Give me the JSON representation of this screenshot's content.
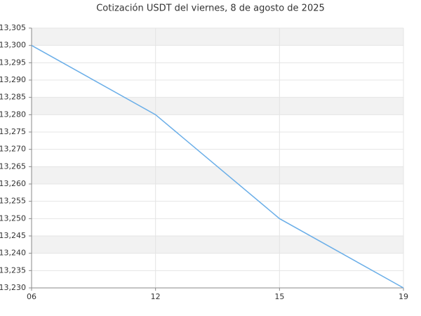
{
  "chart_data": {
    "type": "line",
    "title": "Cotización USDT del viernes, 8 de agosto de 2025",
    "categories": [
      "06",
      "12",
      "15",
      "19"
    ],
    "series": [
      {
        "name": "USDT",
        "color": "#6aaee8",
        "values": [
          13.3,
          13.28,
          13.25,
          13.23
        ]
      }
    ],
    "ylim": [
      13.23,
      13.305
    ],
    "yticks": [
      {
        "value": 13.23,
        "label": "13,230"
      },
      {
        "value": 13.235,
        "label": "13,235"
      },
      {
        "value": 13.24,
        "label": "13,240"
      },
      {
        "value": 13.245,
        "label": "13,245"
      },
      {
        "value": 13.25,
        "label": "13,250"
      },
      {
        "value": 13.255,
        "label": "13,255"
      },
      {
        "value": 13.26,
        "label": "13,260"
      },
      {
        "value": 13.265,
        "label": "13,265"
      },
      {
        "value": 13.27,
        "label": "13,270"
      },
      {
        "value": 13.275,
        "label": "13,275"
      },
      {
        "value": 13.28,
        "label": "13,280"
      },
      {
        "value": 13.285,
        "label": "13,285"
      },
      {
        "value": 13.29,
        "label": "13,290"
      },
      {
        "value": 13.295,
        "label": "13,295"
      },
      {
        "value": 13.3,
        "label": "13,300"
      },
      {
        "value": 13.305,
        "label": "13,305"
      }
    ],
    "grid": true
  }
}
